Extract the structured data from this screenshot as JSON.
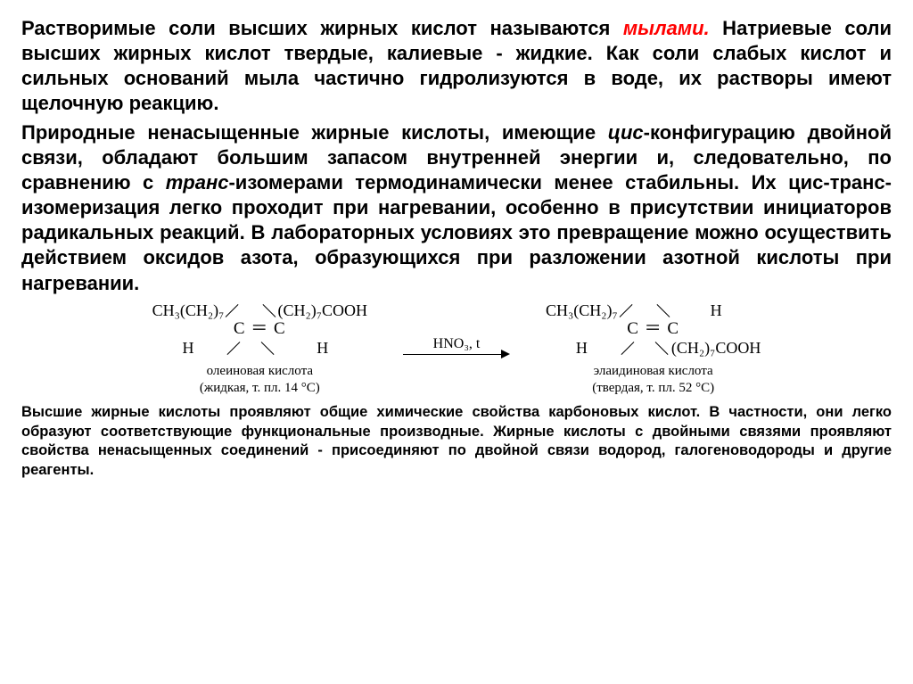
{
  "para1a": "Растворимые соли высших жирных кислот называются ",
  "para1_red": "мылами.",
  "para1b": " Натриевые соли высших жирных кислот твердые, калиевые - жидкие. Как соли слабых кислот и сильных оснований мыла частично гидролизуются в воде, их растворы имеют щелочную реакцию.",
  "para2a": "Природные ненасыщенные жирные кислоты, имеющие ",
  "para2_cis": "цис",
  "para2b": "-конфигурацию двойной связи, обладают большим запасом внутренней энергии и, следовательно, по сравнению с ",
  "para2_trans": "транс",
  "para2c": "-изомерами термодинамически менее стабильны. Их цис-транс-изомеризация легко проходит при нагревании, особенно в присутствии инициаторов радикальных реакций. В лабораторных условиях это превращение можно осуществить действием оксидов азота, образующихся при разложении азотной кислоты при нагревании.",
  "reaction": {
    "left": {
      "top_left": "CH₃(CH₂)₇",
      "top_right": "(CH₂)₇COOH",
      "c": "C",
      "h": "H",
      "dbond": "C ＝ C",
      "label1": "олеиновая кислота",
      "label2": "(жидкая, т. пл. 14 °C)"
    },
    "arrow_top": "HNO₃, t",
    "right": {
      "top_left": "CH₃(CH₂)₇",
      "top_right": "H",
      "bot_left": "H",
      "bot_right": "(CH₂)₇COOH",
      "c": "C",
      "dbond": "C ＝ C",
      "label1": "элаидиновая кислота",
      "label2": "(твердая, т. пл. 52 °C)"
    }
  },
  "para3": "Высшие жирные кислоты проявляют общие химические свойства карбоновых кислот. В частности, они легко образуют соответствующие функциональные производные. Жирные кислоты с двойными связями проявляют свойства ненасыщенных соединений - присоединяют по двойной связи водород, галогеноводороды и другие реагенты.",
  "colors": {
    "text": "#000000",
    "highlight": "#ff0000",
    "background": "#ffffff"
  }
}
